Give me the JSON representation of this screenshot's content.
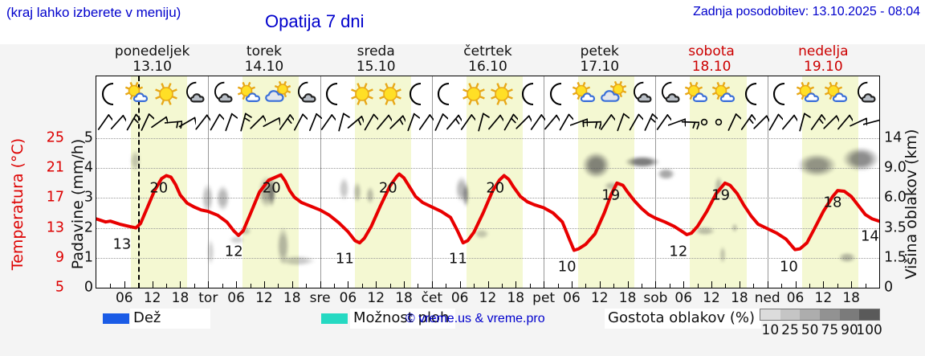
{
  "header": {
    "hint": "(kraj lahko izberete v meniju)",
    "title": "Opatija 7 dni",
    "updated": "Zadnja posodobitev: 13.10.2025 - 08:04"
  },
  "axes": {
    "temp_label": "Temperatura (°C)",
    "temp_ticks": [
      "25",
      "21",
      "17",
      "13",
      "9",
      "5"
    ],
    "temp_color": "#dd0000",
    "precip_label": "Padavine (mm/h)",
    "precip_ticks": [
      "5",
      "4",
      "3",
      "2",
      "1",
      "0"
    ],
    "cloud_label": "Višina oblakov (km)",
    "cloud_ticks": [
      "14",
      "9.0",
      "6.0",
      "3.5",
      "1.5",
      "0"
    ],
    "hour_labels": [
      "06",
      "12",
      "18"
    ],
    "day_abbrevs": [
      "tor",
      "sre",
      "čet",
      "pet",
      "sob",
      "ned"
    ]
  },
  "days": [
    {
      "name": "ponedeljek",
      "date": "13.10",
      "red": false,
      "icons": [
        "moon",
        "sun-cloud",
        "sun",
        "moon-cloud"
      ]
    },
    {
      "name": "torek",
      "date": "14.10",
      "red": false,
      "icons": [
        "moon-cloud",
        "sun-cloud",
        "sun-bigcloud",
        "moon-cloud"
      ]
    },
    {
      "name": "sreda",
      "date": "15.10",
      "red": false,
      "icons": [
        "moon",
        "sun",
        "sun",
        "moon"
      ]
    },
    {
      "name": "četrtek",
      "date": "16.10",
      "red": false,
      "icons": [
        "moon",
        "sun",
        "sun",
        "moon"
      ]
    },
    {
      "name": "petek",
      "date": "17.10",
      "red": false,
      "icons": [
        "moon",
        "sun-cloud",
        "sun-bigcloud",
        "moon-cloud"
      ]
    },
    {
      "name": "sobota",
      "date": "18.10",
      "red": true,
      "icons": [
        "moon-cloud",
        "sun-cloud",
        "sun-cloud",
        "moon"
      ]
    },
    {
      "name": "nedelja",
      "date": "19.10",
      "red": true,
      "icons": [
        "moon",
        "sun-cloud",
        "sun-cloud",
        "moon-cloud"
      ]
    }
  ],
  "chart_data": {
    "type": "line",
    "title": "Opatija 7 dni",
    "x_unit": "hours from Mon 13.10 00:00, 7 days (0-168)",
    "temp_axis_range": [
      5,
      25
    ],
    "precip_axis_range": [
      0,
      5
    ],
    "cloud_height_ticks_km": [
      0,
      1.5,
      3.5,
      6.0,
      9.0,
      14
    ],
    "grid": "dotted horizontal",
    "daylight_band_hours": [
      7.4,
      19.5
    ],
    "now_line_t": 9.1,
    "temp_curve_color": "#e80000",
    "temp_series": [
      [
        0,
        14.2
      ],
      [
        2,
        13.8
      ],
      [
        3,
        13.9
      ],
      [
        5,
        13.5
      ],
      [
        7,
        13.2
      ],
      [
        8.5,
        13.0
      ],
      [
        9.5,
        13.6
      ],
      [
        11,
        15.8
      ],
      [
        12.5,
        18.0
      ],
      [
        14,
        19.6
      ],
      [
        15,
        20.0
      ],
      [
        16,
        19.8
      ],
      [
        17,
        18.8
      ],
      [
        18,
        17.4
      ],
      [
        19.5,
        16.3
      ],
      [
        21,
        15.8
      ],
      [
        22.5,
        15.4
      ],
      [
        24,
        15.2
      ],
      [
        26,
        14.7
      ],
      [
        28,
        13.8
      ],
      [
        29.5,
        12.6
      ],
      [
        30.5,
        12.0
      ],
      [
        31.5,
        12.6
      ],
      [
        33,
        14.8
      ],
      [
        35,
        17.8
      ],
      [
        37,
        19.4
      ],
      [
        38.5,
        19.8
      ],
      [
        39.6,
        20.1
      ],
      [
        40.5,
        19.3
      ],
      [
        41.5,
        18.0
      ],
      [
        42.5,
        17.1
      ],
      [
        44,
        16.4
      ],
      [
        46,
        15.9
      ],
      [
        48,
        15.4
      ],
      [
        50,
        14.7
      ],
      [
        52,
        13.7
      ],
      [
        54,
        12.5
      ],
      [
        55.5,
        11.3
      ],
      [
        56.5,
        11.0
      ],
      [
        57.5,
        11.6
      ],
      [
        59,
        13.2
      ],
      [
        61,
        16.0
      ],
      [
        63,
        18.6
      ],
      [
        64.5,
        19.9
      ],
      [
        65,
        20.2
      ],
      [
        66,
        19.7
      ],
      [
        67,
        18.7
      ],
      [
        68.5,
        17.2
      ],
      [
        70,
        16.4
      ],
      [
        72,
        15.8
      ],
      [
        74,
        15.2
      ],
      [
        76,
        14.4
      ],
      [
        77.5,
        12.6
      ],
      [
        78.7,
        11.0
      ],
      [
        79.7,
        11.3
      ],
      [
        81,
        12.4
      ],
      [
        83,
        15.0
      ],
      [
        85,
        17.9
      ],
      [
        86.5,
        19.4
      ],
      [
        87.5,
        20.0
      ],
      [
        88.5,
        19.5
      ],
      [
        89.5,
        18.5
      ],
      [
        91,
        17.2
      ],
      [
        92.5,
        16.5
      ],
      [
        94,
        16.1
      ],
      [
        96,
        15.7
      ],
      [
        98,
        15.0
      ],
      [
        100,
        13.8
      ],
      [
        101.5,
        11.5
      ],
      [
        102.5,
        10.0
      ],
      [
        103.5,
        10.2
      ],
      [
        105,
        10.8
      ],
      [
        107,
        12.2
      ],
      [
        109,
        15.0
      ],
      [
        110.5,
        17.5
      ],
      [
        111.7,
        19.0
      ],
      [
        113,
        18.7
      ],
      [
        114,
        17.8
      ],
      [
        115.5,
        16.6
      ],
      [
        117,
        15.6
      ],
      [
        118.5,
        14.8
      ],
      [
        120,
        14.3
      ],
      [
        122,
        13.8
      ],
      [
        124,
        13.2
      ],
      [
        126,
        12.4
      ],
      [
        126.7,
        12.1
      ],
      [
        127.7,
        12.3
      ],
      [
        129,
        13.2
      ],
      [
        131,
        15.2
      ],
      [
        133,
        17.6
      ],
      [
        134.9,
        19.0
      ],
      [
        136,
        18.7
      ],
      [
        137.5,
        17.6
      ],
      [
        139,
        16.0
      ],
      [
        140.5,
        14.6
      ],
      [
        142,
        13.5
      ],
      [
        144,
        12.9
      ],
      [
        146,
        12.3
      ],
      [
        148,
        11.5
      ],
      [
        149.9,
        10.1
      ],
      [
        151,
        10.2
      ],
      [
        152.5,
        11.0
      ],
      [
        154,
        12.8
      ],
      [
        156,
        15.2
      ],
      [
        158,
        17.2
      ],
      [
        159.1,
        18.0
      ],
      [
        160.5,
        17.9
      ],
      [
        162,
        17.2
      ],
      [
        163.5,
        16.0
      ],
      [
        165,
        14.8
      ],
      [
        166.5,
        14.2
      ],
      [
        168,
        13.9
      ]
    ],
    "min_labels": [
      {
        "t": 5.5,
        "v": 13
      },
      {
        "t": 29.5,
        "v": 12
      },
      {
        "t": 53.3,
        "v": 11
      },
      {
        "t": 77.6,
        "v": 11
      },
      {
        "t": 101,
        "v": 10
      },
      {
        "t": 124.9,
        "v": 12
      },
      {
        "t": 148.6,
        "v": 10
      },
      {
        "t": 166.0,
        "v": 14
      }
    ],
    "max_labels": [
      {
        "t": 13.4,
        "v": 20
      },
      {
        "t": 37.6,
        "v": 20
      },
      {
        "t": 62.6,
        "v": 20
      },
      {
        "t": 85.6,
        "v": 20
      },
      {
        "t": 110.4,
        "v": 19
      },
      {
        "t": 134.0,
        "v": 19
      },
      {
        "t": 158.0,
        "v": 18
      }
    ],
    "clouds": [
      {
        "t": 8.3,
        "lv": 4.25,
        "w": 2.2,
        "h": 0.7,
        "d": 0.3
      },
      {
        "t": 24.5,
        "lv": 1.2,
        "w": 1.6,
        "h": 0.9,
        "d": 0.25
      },
      {
        "t": 30.2,
        "lv": 1.6,
        "w": 3.4,
        "h": 0.3,
        "d": 0.25
      },
      {
        "t": 23.8,
        "lv": 3.0,
        "w": 2.6,
        "h": 1.0,
        "d": 0.35
      },
      {
        "t": 27.1,
        "lv": 3.0,
        "w": 3.0,
        "h": 0.9,
        "d": 0.4
      },
      {
        "t": 36.5,
        "lv": 3.2,
        "w": 3.4,
        "h": 1.1,
        "d": 0.45
      },
      {
        "t": 37.6,
        "lv": 3.2,
        "w": 1.5,
        "h": 1.0,
        "d": 0.65
      },
      {
        "t": 40.0,
        "lv": 1.4,
        "w": 2.6,
        "h": 1.3,
        "d": 0.4
      },
      {
        "t": 43.1,
        "lv": 0.9,
        "w": 8.0,
        "h": 0.35,
        "d": 0.3
      },
      {
        "t": 31.9,
        "lv": 1.9,
        "w": 2.6,
        "h": 0.3,
        "d": 0.3
      },
      {
        "t": 53.1,
        "lv": 3.3,
        "w": 2.2,
        "h": 0.8,
        "d": 0.3
      },
      {
        "t": 56.0,
        "lv": 3.2,
        "w": 1.8,
        "h": 0.7,
        "d": 0.35
      },
      {
        "t": 58.8,
        "lv": 3.1,
        "w": 1.8,
        "h": 0.6,
        "d": 0.35
      },
      {
        "t": 78.4,
        "lv": 3.3,
        "w": 2.8,
        "h": 0.9,
        "d": 0.4
      },
      {
        "t": 79.3,
        "lv": 3.1,
        "w": 1.4,
        "h": 0.8,
        "d": 0.6
      },
      {
        "t": 82.7,
        "lv": 1.8,
        "w": 3.2,
        "h": 0.3,
        "d": 0.3
      },
      {
        "t": 107.2,
        "lv": 4.1,
        "w": 6.0,
        "h": 0.9,
        "d": 0.7
      },
      {
        "t": 110.6,
        "lv": 3.4,
        "w": 3.4,
        "h": 0.3,
        "d": 0.35
      },
      {
        "t": 117.2,
        "lv": 4.2,
        "w": 7.5,
        "h": 0.4,
        "d": 0.75
      },
      {
        "t": 122.3,
        "lv": 3.8,
        "w": 4.0,
        "h": 0.4,
        "d": 0.5
      },
      {
        "t": 130.6,
        "lv": 1.9,
        "w": 4.4,
        "h": 0.3,
        "d": 0.35
      },
      {
        "t": 133.5,
        "lv": 3.4,
        "w": 1.8,
        "h": 0.7,
        "d": 0.35
      },
      {
        "t": 137.0,
        "lv": 2.0,
        "w": 1.4,
        "h": 0.3,
        "d": 0.3
      },
      {
        "t": 134.4,
        "lv": 1.1,
        "w": 1.4,
        "h": 0.6,
        "d": 0.3
      },
      {
        "t": 154.7,
        "lv": 4.1,
        "w": 8.5,
        "h": 0.8,
        "d": 0.6
      },
      {
        "t": 164.0,
        "lv": 4.3,
        "w": 8.0,
        "h": 0.8,
        "d": 0.65
      },
      {
        "t": 161.1,
        "lv": 1.0,
        "w": 3.8,
        "h": 0.35,
        "d": 0.4
      }
    ],
    "wind_barbs": [
      [
        35,
        1
      ],
      [
        42,
        1
      ],
      [
        30,
        2
      ],
      [
        25,
        1
      ],
      [
        55,
        1
      ],
      [
        85,
        2
      ],
      [
        60,
        1
      ],
      [
        38,
        1
      ],
      [
        30,
        1
      ],
      [
        20,
        1
      ],
      [
        15,
        2
      ],
      [
        45,
        1
      ],
      [
        62,
        1
      ],
      [
        35,
        2
      ],
      [
        28,
        1
      ],
      [
        22,
        1
      ],
      [
        35,
        1
      ],
      [
        15,
        1
      ],
      [
        50,
        2
      ],
      [
        30,
        1
      ],
      [
        40,
        1
      ],
      [
        45,
        2
      ],
      [
        20,
        1
      ],
      [
        35,
        1
      ],
      [
        25,
        1
      ],
      [
        40,
        2
      ],
      [
        35,
        1
      ],
      [
        15,
        1
      ],
      [
        40,
        1
      ],
      [
        30,
        2
      ],
      [
        45,
        1
      ],
      [
        35,
        1
      ],
      [
        40,
        1
      ],
      [
        30,
        1
      ],
      [
        70,
        2
      ],
      [
        88,
        2
      ],
      [
        35,
        1
      ],
      [
        20,
        1
      ],
      [
        30,
        1
      ],
      [
        25,
        2
      ],
      [
        35,
        1
      ],
      [
        70,
        1
      ],
      [
        92,
        2
      ],
      [
        0,
        0
      ],
      [
        0,
        0
      ],
      [
        25,
        1
      ],
      [
        35,
        2
      ],
      [
        45,
        1
      ],
      [
        30,
        1
      ],
      [
        40,
        1
      ],
      [
        15,
        1
      ],
      [
        35,
        2
      ],
      [
        45,
        1
      ],
      [
        40,
        1
      ],
      [
        65,
        1
      ],
      [
        75,
        1
      ]
    ]
  },
  "legend": {
    "rain": "Dež",
    "rain_color": "#1a5be6",
    "showers": "Možnost ploh",
    "showers_color": "#25d9c2",
    "copyright": "© vreme.us & vreme.pro",
    "cloud_density": "Gostota oblakov (%)",
    "density_ticks": [
      "10",
      "25",
      "50",
      "75",
      "90",
      "100"
    ],
    "density_shades": [
      "#dcdcdc",
      "#c5c5c5",
      "#adadad",
      "#929292",
      "#7b7b7b",
      "#5a5a5a"
    ]
  }
}
